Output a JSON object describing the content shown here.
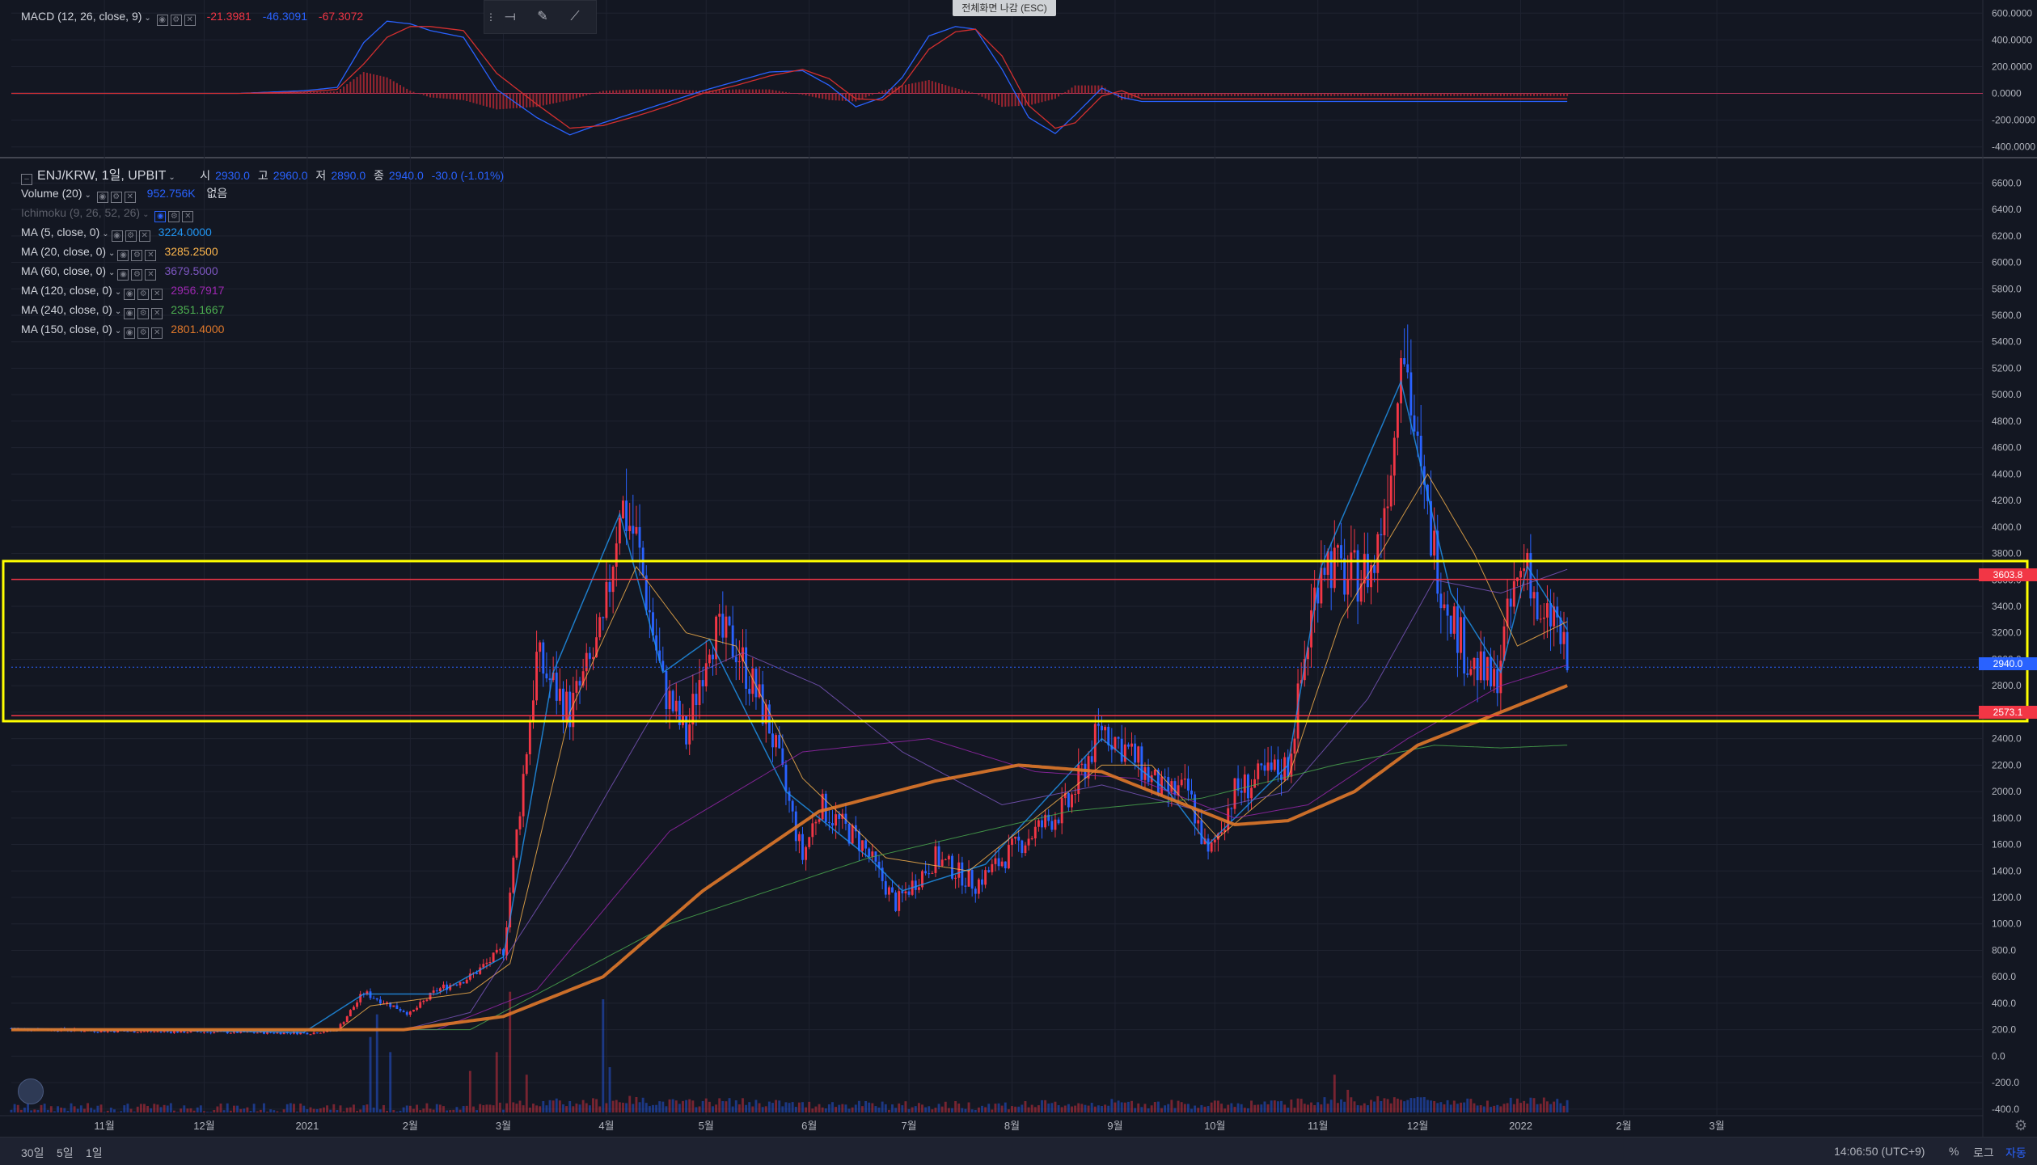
{
  "ui": {
    "exit_fullscreen": "전체화면 나감 (ESC)",
    "bottom": {
      "range_30d": "30일",
      "range_5d": "5일",
      "range_1d": "1일",
      "time": "14:06:50 (UTC+9)",
      "percent": "%",
      "log": "로그",
      "auto": "자동"
    }
  },
  "legend": {
    "macd": {
      "label": "MACD (12, 26, close, 9)",
      "v1": "-21.3981",
      "v2": "-46.3091",
      "v3": "-67.3072",
      "v1_color": "#f23645",
      "v2_color": "#2962ff",
      "v3_color": "#f23645"
    },
    "symbol": {
      "label": "ENJ/KRW, 1일, UPBIT",
      "o_label": "시",
      "o": "2930.0",
      "h_label": "고",
      "h": "2960.0",
      "l_label": "저",
      "l": "2890.0",
      "c_label": "종",
      "c": "2940.0",
      "chg": "-30.0 (-1.01%)"
    },
    "volume": {
      "label": "Volume (20)",
      "value": "952.756K",
      "extra": "없음"
    },
    "ichimoku": {
      "label": "Ichimoku (9, 26, 52, 26)"
    },
    "ma": [
      {
        "label": "MA (5, close, 0)",
        "value": "3224.0000",
        "color": "#2196f3"
      },
      {
        "label": "MA (20, close, 0)",
        "value": "3285.2500",
        "color": "#ffb74d"
      },
      {
        "label": "MA (60, close, 0)",
        "value": "3679.5000",
        "color": "#7e57c2"
      },
      {
        "label": "MA (120, close, 0)",
        "value": "2956.7917",
        "color": "#9c27b0"
      },
      {
        "label": "MA (240, close, 0)",
        "value": "2351.1667",
        "color": "#4caf50"
      },
      {
        "label": "MA (150, close, 0)",
        "value": "2801.4000",
        "color": "#e0782a"
      }
    ]
  },
  "price_tags": [
    {
      "value": 3603.8,
      "text": "3603.8",
      "color": "#f23645"
    },
    {
      "value": 2940.0,
      "text": "2940.0",
      "color": "#2962ff"
    },
    {
      "value": 2573.1,
      "text": "2573.1",
      "color": "#f23645"
    }
  ],
  "chart_data": [
    {
      "type": "line",
      "name": "MACD",
      "y_ticks": [
        "600.0000",
        "400.0000",
        "200.0000",
        "0.0000",
        "-200.0000",
        "-400.0000"
      ],
      "ylim": [
        -450,
        650
      ],
      "x_index": [
        0,
        40,
        60,
        70,
        78,
        85,
        92,
        98,
        108,
        118,
        130,
        140,
        150,
        160,
        170,
        180,
        190,
        200,
        210,
        218,
        226,
        234,
        240,
        248,
        256,
        262,
        270,
        278,
        286,
        292,
        300,
        306,
        312
      ],
      "macd": [
        0,
        0,
        20,
        45,
        380,
        540,
        520,
        470,
        420,
        30,
        -180,
        -310,
        -220,
        -140,
        -60,
        20,
        90,
        160,
        170,
        60,
        -100,
        -30,
        120,
        430,
        500,
        480,
        180,
        -180,
        -300,
        -160,
        40,
        -30,
        -60
      ],
      "signal": [
        0,
        0,
        10,
        30,
        220,
        420,
        500,
        500,
        470,
        150,
        -80,
        -260,
        -240,
        -170,
        -90,
        0,
        60,
        130,
        180,
        110,
        -40,
        -50,
        60,
        330,
        460,
        480,
        280,
        -90,
        -260,
        -220,
        -20,
        20,
        -40
      ],
      "histogram": [
        0,
        0,
        10,
        15,
        160,
        120,
        20,
        -30,
        -50,
        -120,
        -100,
        -50,
        20,
        30,
        30,
        20,
        30,
        30,
        -10,
        -50,
        -60,
        20,
        60,
        100,
        40,
        0,
        -100,
        -90,
        -40,
        60,
        60,
        -50,
        -20
      ]
    },
    {
      "type": "candlestick",
      "name": "ENJ/KRW, 1일, UPBIT",
      "x_tick_labels": [
        "11월",
        "12월",
        "2021",
        "2월",
        "3월",
        "4월",
        "5월",
        "6월",
        "7월",
        "8월",
        "9월",
        "10월",
        "11월",
        "12월",
        "2022",
        "2월",
        "3월"
      ],
      "x_tick_index": [
        0,
        30,
        61,
        92,
        120,
        151,
        181,
        212,
        242,
        273,
        304,
        334,
        365,
        395,
        426,
        457,
        485
      ],
      "x_index_range": [
        -28,
        565
      ],
      "y_ticks": [
        "6600.0",
        "6400.0",
        "6200.0",
        "6000.0",
        "5800.0",
        "5600.0",
        "5400.0",
        "5200.0",
        "5000.0",
        "4800.0",
        "4600.0",
        "4400.0",
        "4200.0",
        "4000.0",
        "3800.0",
        "3600.0",
        "3400.0",
        "3200.0",
        "3000.0",
        "2800.0",
        "2600.0",
        "2400.0",
        "2200.0",
        "2000.0",
        "1800.0",
        "1600.0",
        "1400.0",
        "1200.0",
        "1000.0",
        "800.0",
        "600.0",
        "400.0",
        "200.0",
        "0.0",
        "-200.0",
        "-400.0"
      ],
      "ylim": [
        -450,
        6700
      ],
      "close_anchors": [
        [
          -28,
          210
        ],
        [
          0,
          190
        ],
        [
          40,
          180
        ],
        [
          62,
          175
        ],
        [
          70,
          200
        ],
        [
          78,
          480
        ],
        [
          92,
          320
        ],
        [
          100,
          500
        ],
        [
          110,
          600
        ],
        [
          120,
          800
        ],
        [
          130,
          3000
        ],
        [
          140,
          2600
        ],
        [
          150,
          3200
        ],
        [
          155,
          4200
        ],
        [
          160,
          3900
        ],
        [
          168,
          2800
        ],
        [
          175,
          2400
        ],
        [
          182,
          3200
        ],
        [
          190,
          3100
        ],
        [
          200,
          2500
        ],
        [
          210,
          1500
        ],
        [
          215,
          1900
        ],
        [
          228,
          1600
        ],
        [
          238,
          1150
        ],
        [
          250,
          1500
        ],
        [
          262,
          1300
        ],
        [
          275,
          1600
        ],
        [
          290,
          1900
        ],
        [
          300,
          2500
        ],
        [
          308,
          2300
        ],
        [
          318,
          2000
        ],
        [
          326,
          2000
        ],
        [
          332,
          1500
        ],
        [
          340,
          2000
        ],
        [
          356,
          2200
        ],
        [
          366,
          3800
        ],
        [
          374,
          3600
        ],
        [
          382,
          3700
        ],
        [
          388,
          4700
        ],
        [
          390,
          5600
        ],
        [
          396,
          4300
        ],
        [
          402,
          3600
        ],
        [
          410,
          3000
        ],
        [
          418,
          2800
        ],
        [
          424,
          3500
        ],
        [
          428,
          3800
        ],
        [
          432,
          3200
        ],
        [
          436,
          3350
        ],
        [
          440,
          2940
        ]
      ],
      "ma_anchors": {
        "ma5": [
          [
            -28,
            210
          ],
          [
            60,
            180
          ],
          [
            78,
            470
          ],
          [
            100,
            470
          ],
          [
            120,
            750
          ],
          [
            135,
            2900
          ],
          [
            155,
            4100
          ],
          [
            168,
            2900
          ],
          [
            182,
            3150
          ],
          [
            205,
            2000
          ],
          [
            230,
            1500
          ],
          [
            240,
            1250
          ],
          [
            265,
            1450
          ],
          [
            300,
            2400
          ],
          [
            320,
            2000
          ],
          [
            332,
            1600
          ],
          [
            356,
            2200
          ],
          [
            366,
            3700
          ],
          [
            390,
            5100
          ],
          [
            405,
            3500
          ],
          [
            420,
            2900
          ],
          [
            428,
            3700
          ],
          [
            440,
            3224
          ]
        ],
        "ma20": [
          [
            -28,
            200
          ],
          [
            70,
            190
          ],
          [
            80,
            380
          ],
          [
            110,
            480
          ],
          [
            122,
            700
          ],
          [
            140,
            2600
          ],
          [
            160,
            3700
          ],
          [
            175,
            3200
          ],
          [
            190,
            3100
          ],
          [
            210,
            2100
          ],
          [
            235,
            1500
          ],
          [
            260,
            1400
          ],
          [
            300,
            2200
          ],
          [
            315,
            2200
          ],
          [
            335,
            1650
          ],
          [
            356,
            2100
          ],
          [
            372,
            3300
          ],
          [
            398,
            4400
          ],
          [
            412,
            3800
          ],
          [
            425,
            3100
          ],
          [
            440,
            3285
          ]
        ],
        "ma60": [
          [
            -28,
            200
          ],
          [
            90,
            200
          ],
          [
            110,
            330
          ],
          [
            140,
            1500
          ],
          [
            170,
            2800
          ],
          [
            192,
            3050
          ],
          [
            215,
            2800
          ],
          [
            240,
            2300
          ],
          [
            270,
            1900
          ],
          [
            300,
            2050
          ],
          [
            330,
            1850
          ],
          [
            356,
            2000
          ],
          [
            380,
            2700
          ],
          [
            400,
            3600
          ],
          [
            420,
            3500
          ],
          [
            440,
            3680
          ]
        ],
        "ma120": [
          [
            -28,
            200
          ],
          [
            100,
            200
          ],
          [
            130,
            500
          ],
          [
            170,
            1700
          ],
          [
            210,
            2300
          ],
          [
            248,
            2400
          ],
          [
            280,
            2150
          ],
          [
            310,
            2100
          ],
          [
            340,
            1800
          ],
          [
            362,
            1900
          ],
          [
            392,
            2400
          ],
          [
            420,
            2800
          ],
          [
            440,
            2957
          ]
        ],
        "ma240": [
          [
            -28,
            200
          ],
          [
            110,
            200
          ],
          [
            170,
            1000
          ],
          [
            230,
            1500
          ],
          [
            290,
            1850
          ],
          [
            330,
            1950
          ],
          [
            370,
            2200
          ],
          [
            400,
            2350
          ],
          [
            420,
            2330
          ],
          [
            440,
            2351
          ]
        ],
        "ma150": [
          [
            -28,
            200
          ],
          [
            90,
            200
          ],
          [
            120,
            300
          ],
          [
            150,
            600
          ],
          [
            180,
            1250
          ],
          [
            215,
            1850
          ],
          [
            250,
            2080
          ],
          [
            275,
            2200
          ],
          [
            300,
            2150
          ],
          [
            320,
            1950
          ],
          [
            340,
            1750
          ],
          [
            356,
            1780
          ],
          [
            376,
            2000
          ],
          [
            395,
            2350
          ],
          [
            420,
            2600
          ],
          [
            440,
            2801
          ]
        ]
      },
      "volume": {
        "unit": "K",
        "max_value": 3000,
        "spikes": [
          [
            80,
            1000
          ],
          [
            82,
            1300
          ],
          [
            86,
            800
          ],
          [
            110,
            550
          ],
          [
            118,
            800
          ],
          [
            122,
            1600
          ],
          [
            127,
            500
          ],
          [
            150,
            1500
          ],
          [
            152,
            600
          ],
          [
            370,
            500
          ],
          [
            374,
            300
          ]
        ]
      }
    }
  ]
}
